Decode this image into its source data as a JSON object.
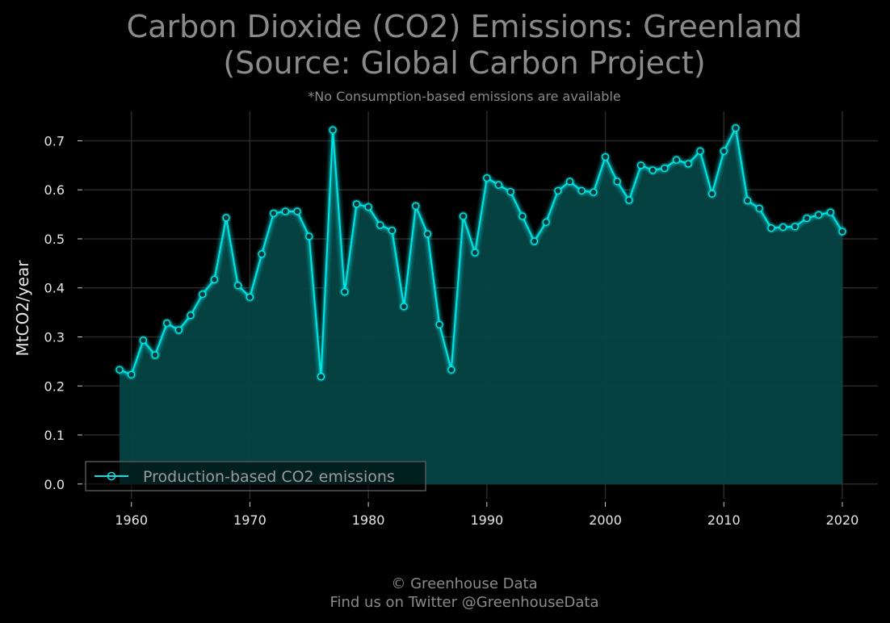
{
  "chart_data": {
    "type": "area",
    "title_line1": "Carbon Dioxide (CO2) Emissions: Greenland",
    "title_line2": "(Source: Global Carbon Project)",
    "subtitle": "*No Consumption-based emissions are available",
    "ylabel": "MtCO2/year",
    "xlabel": "",
    "xlim": [
      1956,
      2023
    ],
    "ylim": [
      -0.03,
      0.76
    ],
    "x_ticks": [
      1960,
      1970,
      1980,
      1990,
      2000,
      2010,
      2020
    ],
    "y_ticks": [
      0.0,
      0.1,
      0.2,
      0.3,
      0.4,
      0.5,
      0.6,
      0.7
    ],
    "y_tick_labels": [
      "0.0",
      "0.1",
      "0.2",
      "0.3",
      "0.4",
      "0.5",
      "0.6",
      "0.7"
    ],
    "grid": true,
    "legend_position": "bottom-left",
    "series": [
      {
        "name": "Production-based CO2 emissions",
        "color": "#00e5e5",
        "fill_color": "#054444",
        "x": [
          1959,
          1960,
          1961,
          1962,
          1963,
          1964,
          1965,
          1966,
          1967,
          1968,
          1969,
          1970,
          1971,
          1972,
          1973,
          1974,
          1975,
          1976,
          1977,
          1978,
          1979,
          1980,
          1981,
          1982,
          1983,
          1984,
          1985,
          1986,
          1987,
          1988,
          1989,
          1990,
          1991,
          1992,
          1993,
          1994,
          1995,
          1996,
          1997,
          1998,
          1999,
          2000,
          2001,
          2002,
          2003,
          2004,
          2005,
          2006,
          2007,
          2008,
          2009,
          2010,
          2011,
          2012,
          2013,
          2014,
          2015,
          2016,
          2017,
          2018,
          2019,
          2020
        ],
        "y": [
          0.233,
          0.223,
          0.293,
          0.263,
          0.328,
          0.314,
          0.344,
          0.387,
          0.417,
          0.543,
          0.405,
          0.381,
          0.469,
          0.552,
          0.556,
          0.556,
          0.505,
          0.219,
          0.722,
          0.392,
          0.571,
          0.565,
          0.528,
          0.517,
          0.362,
          0.567,
          0.51,
          0.325,
          0.233,
          0.546,
          0.472,
          0.624,
          0.61,
          0.596,
          0.546,
          0.495,
          0.534,
          0.598,
          0.617,
          0.598,
          0.595,
          0.667,
          0.617,
          0.579,
          0.65,
          0.64,
          0.644,
          0.661,
          0.653,
          0.679,
          0.592,
          0.679,
          0.726,
          0.578,
          0.562,
          0.522,
          0.524,
          0.525,
          0.542,
          0.549,
          0.554,
          0.515
        ]
      }
    ]
  },
  "footer": {
    "line1": "© Greenhouse Data",
    "line2": "Find us on Twitter @GreenhouseData"
  }
}
